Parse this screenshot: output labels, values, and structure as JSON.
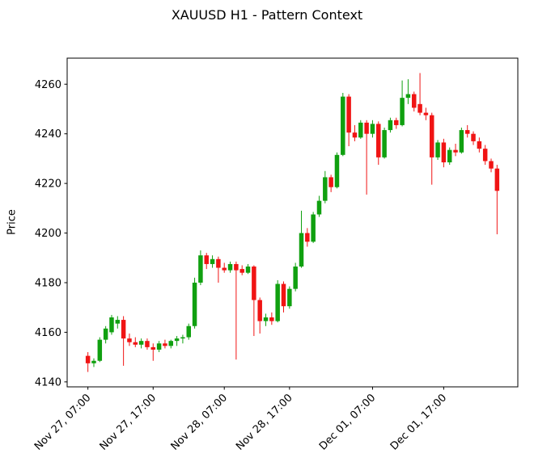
{
  "chart_data": {
    "type": "candlestick",
    "title": "XAUUSD H1 - Pattern Context",
    "ylabel": "Price",
    "symbol": "XAUUSD",
    "timeframe": "H1",
    "up_color": "#10a010",
    "down_color": "#f01414",
    "ylim": [
      4138,
      4270.5
    ],
    "y_ticks": [
      4140,
      4160,
      4180,
      4200,
      4220,
      4240,
      4260
    ],
    "x_tick_labels": [
      "Nov 27, 07:00",
      "Nov 27, 17:00",
      "Nov 28, 07:00",
      "Nov 28, 17:00",
      "Dec 01, 07:00",
      "Dec 01, 17:00"
    ],
    "x_tick_indices": [
      0,
      11,
      23,
      34,
      48,
      60
    ],
    "ohlc_format": [
      "open",
      "high",
      "low",
      "close"
    ],
    "candles": [
      [
        4150.5,
        4152,
        4144,
        4147.5
      ],
      [
        4147.5,
        4149.5,
        4146,
        4148.5
      ],
      [
        4148.5,
        4158,
        4148,
        4157
      ],
      [
        4157,
        4162.5,
        4155.5,
        4161.5
      ],
      [
        4160,
        4167,
        4159,
        4166
      ],
      [
        4163.5,
        4166.5,
        4161.5,
        4165
      ],
      [
        4165,
        4166.5,
        4146.5,
        4157.5
      ],
      [
        4157.5,
        4159.5,
        4154.5,
        4156
      ],
      [
        4156,
        4158,
        4154,
        4155
      ],
      [
        4155,
        4157.5,
        4153.5,
        4156.5
      ],
      [
        4156.5,
        4157.5,
        4153,
        4154
      ],
      [
        4154,
        4155.5,
        4148.5,
        4153
      ],
      [
        4153,
        4156.5,
        4152,
        4155.5
      ],
      [
        4155.5,
        4157,
        4153.5,
        4154.5
      ],
      [
        4154.5,
        4157,
        4153.5,
        4156.5
      ],
      [
        4156.5,
        4158.5,
        4154.5,
        4157.5
      ],
      [
        4157.5,
        4159,
        4155.5,
        4158
      ],
      [
        4158,
        4163.5,
        4157,
        4162.5
      ],
      [
        4162.5,
        4182,
        4161.5,
        4180
      ],
      [
        4180,
        4193,
        4179,
        4191
      ],
      [
        4191,
        4192,
        4185.5,
        4187.5
      ],
      [
        4187.5,
        4191,
        4186,
        4189.5
      ],
      [
        4189.5,
        4190.5,
        4180,
        4186
      ],
      [
        4186,
        4188,
        4184,
        4185
      ],
      [
        4185,
        4188.5,
        4184,
        4187.5
      ],
      [
        4187.5,
        4188.5,
        4149,
        4185
      ],
      [
        4185.5,
        4187,
        4183,
        4184
      ],
      [
        4184,
        4187.5,
        4183.5,
        4186.5
      ],
      [
        4186.5,
        4187,
        4158.5,
        4173
      ],
      [
        4173,
        4174,
        4159.5,
        4164.5
      ],
      [
        4164.5,
        4167.5,
        4162.5,
        4166
      ],
      [
        4166,
        4168,
        4163,
        4164.5
      ],
      [
        4164.5,
        4181,
        4164,
        4179.5
      ],
      [
        4179.5,
        4180.5,
        4168,
        4170.5
      ],
      [
        4170.5,
        4178.5,
        4169.5,
        4177.5
      ],
      [
        4177.5,
        4188,
        4176.5,
        4186.5
      ],
      [
        4186.5,
        4209,
        4186,
        4200
      ],
      [
        4200,
        4202,
        4194.5,
        4196.5
      ],
      [
        4196.5,
        4208.5,
        4196,
        4207.5
      ],
      [
        4207.5,
        4215,
        4206.5,
        4213
      ],
      [
        4213,
        4225,
        4212,
        4222.5
      ],
      [
        4222.5,
        4223.5,
        4216.5,
        4218.5
      ],
      [
        4218.5,
        4232.5,
        4218,
        4231.5
      ],
      [
        4231.5,
        4256.5,
        4231,
        4255
      ],
      [
        4255,
        4256,
        4235,
        4240.5
      ],
      [
        4240.5,
        4243.5,
        4237,
        4238.5
      ],
      [
        4238.5,
        4245.5,
        4238,
        4244.5
      ],
      [
        4244.5,
        4245.5,
        4215.5,
        4240
      ],
      [
        4240,
        4245.5,
        4238.5,
        4244
      ],
      [
        4244,
        4245,
        4227.5,
        4230.5
      ],
      [
        4230.5,
        4242.5,
        4230,
        4241.5
      ],
      [
        4241.5,
        4246.5,
        4240.5,
        4245.5
      ],
      [
        4245.5,
        4246.5,
        4242,
        4243.5
      ],
      [
        4243.5,
        4261.5,
        4243,
        4254.5
      ],
      [
        4254.5,
        4262,
        4252,
        4256
      ],
      [
        4256,
        4257,
        4249,
        4250.5
      ],
      [
        4252,
        4264.5,
        4247.5,
        4248.5
      ],
      [
        4248.5,
        4250.5,
        4245.5,
        4247.5
      ],
      [
        4247.5,
        4248.5,
        4219.5,
        4230.5
      ],
      [
        4230.5,
        4237.5,
        4229.5,
        4236.5
      ],
      [
        4236.5,
        4238,
        4226.5,
        4228.5
      ],
      [
        4228.5,
        4234.5,
        4227.5,
        4233.5
      ],
      [
        4233.5,
        4236,
        4231,
        4232.5
      ],
      [
        4232.5,
        4242.5,
        4232,
        4241.5
      ],
      [
        4241.5,
        4243.5,
        4238.5,
        4240
      ],
      [
        4240,
        4241,
        4235.5,
        4237
      ],
      [
        4237,
        4238.5,
        4232.5,
        4234
      ],
      [
        4234,
        4235.5,
        4227.5,
        4229
      ],
      [
        4229,
        4230,
        4224.5,
        4226
      ],
      [
        4226,
        4227.5,
        4199.5,
        4217
      ]
    ]
  }
}
